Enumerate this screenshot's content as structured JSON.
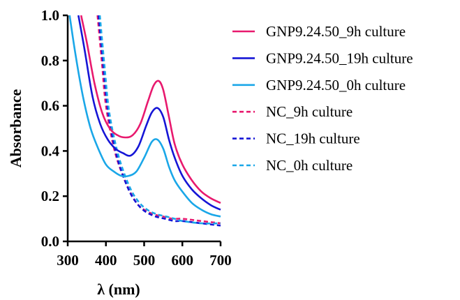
{
  "chart_data": {
    "type": "line",
    "title": "",
    "xlabel": "λ (nm)",
    "ylabel": "Absorbance",
    "xlim": [
      300,
      700
    ],
    "ylim": [
      0,
      1.0
    ],
    "x_ticks": [
      "300",
      "400",
      "500",
      "600",
      "700"
    ],
    "y_ticks": [
      "0.0",
      "0.2",
      "0.4",
      "0.6",
      "0.8",
      "1.0"
    ],
    "grid": false,
    "legend_position": "right",
    "series": [
      {
        "name": "GNP9.24.50_9h culture",
        "color": "#e8196e",
        "dash": "solid",
        "x": [
          335,
          350,
          370,
          390,
          410,
          430,
          450,
          470,
          490,
          510,
          525,
          538,
          550,
          565,
          580,
          600,
          625,
          650,
          675,
          700
        ],
        "y": [
          1.0,
          0.88,
          0.7,
          0.57,
          0.5,
          0.47,
          0.46,
          0.47,
          0.52,
          0.62,
          0.69,
          0.71,
          0.67,
          0.55,
          0.43,
          0.34,
          0.27,
          0.22,
          0.19,
          0.17
        ]
      },
      {
        "name": "GNP9.24.50_19h culture",
        "color": "#1515d6",
        "dash": "solid",
        "x": [
          328,
          345,
          365,
          385,
          405,
          425,
          445,
          465,
          485,
          505,
          520,
          535,
          550,
          565,
          580,
          600,
          625,
          650,
          675,
          700
        ],
        "y": [
          1.0,
          0.84,
          0.64,
          0.52,
          0.45,
          0.41,
          0.39,
          0.38,
          0.42,
          0.51,
          0.57,
          0.59,
          0.55,
          0.45,
          0.37,
          0.29,
          0.23,
          0.19,
          0.16,
          0.14
        ]
      },
      {
        "name": "GNP9.24.50_0h culture",
        "color": "#1aa7e8",
        "dash": "solid",
        "x": [
          305,
          320,
          340,
          360,
          380,
          400,
          420,
          440,
          460,
          480,
          500,
          520,
          535,
          550,
          565,
          580,
          600,
          625,
          650,
          675,
          700
        ],
        "y": [
          1.0,
          0.83,
          0.64,
          0.5,
          0.41,
          0.34,
          0.31,
          0.29,
          0.29,
          0.31,
          0.37,
          0.44,
          0.45,
          0.41,
          0.33,
          0.27,
          0.22,
          0.17,
          0.14,
          0.12,
          0.11
        ]
      },
      {
        "name": "NC_9h culture",
        "color": "#e8196e",
        "dash": "dashed",
        "x": [
          378,
          390,
          400,
          420,
          440,
          460,
          480,
          500,
          525,
          550,
          575,
          600,
          650,
          700
        ],
        "y": [
          1.0,
          0.78,
          0.6,
          0.42,
          0.31,
          0.23,
          0.17,
          0.14,
          0.12,
          0.11,
          0.1,
          0.1,
          0.09,
          0.08
        ]
      },
      {
        "name": "NC_19h culture",
        "color": "#1515d6",
        "dash": "dashed",
        "x": [
          381,
          393,
          405,
          425,
          445,
          465,
          485,
          505,
          530,
          555,
          580,
          600,
          650,
          700
        ],
        "y": [
          1.0,
          0.78,
          0.58,
          0.4,
          0.29,
          0.21,
          0.16,
          0.13,
          0.11,
          0.1,
          0.09,
          0.09,
          0.08,
          0.07
        ]
      },
      {
        "name": "NC_0h culture",
        "color": "#1aa7e8",
        "dash": "dashed",
        "x": [
          384,
          396,
          408,
          428,
          448,
          468,
          488,
          508,
          533,
          558,
          580,
          600,
          650,
          700
        ],
        "y": [
          1.0,
          0.78,
          0.58,
          0.41,
          0.3,
          0.22,
          0.17,
          0.14,
          0.12,
          0.11,
          0.1,
          0.09,
          0.08,
          0.08
        ]
      }
    ]
  }
}
